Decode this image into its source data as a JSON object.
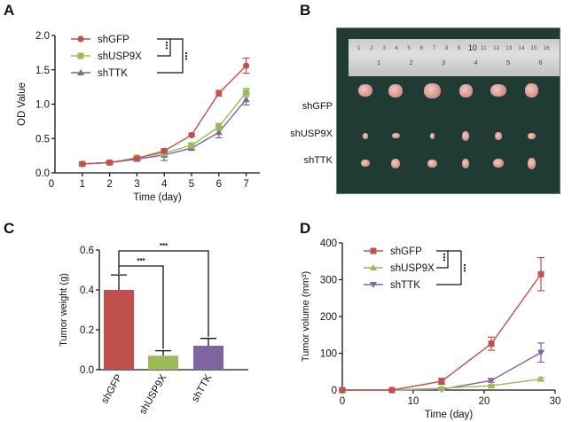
{
  "panels": {
    "A": "A",
    "B": "B",
    "C": "C",
    "D": "D"
  },
  "colors": {
    "shGFP": "#c0504d",
    "shUSP9X": "#9bbb59",
    "shTTK": "#8064a2"
  },
  "chart_data": [
    {
      "id": "A",
      "type": "line",
      "title": "",
      "xlabel": "Time (day)",
      "ylabel": "OD Value",
      "x": [
        1,
        2,
        3,
        4,
        5,
        6,
        7
      ],
      "xticks": [
        "0",
        "1",
        "2",
        "3",
        "4",
        "5",
        "6",
        "7"
      ],
      "yticks": [
        "0.0",
        "0.5",
        "1.0",
        "1.5",
        "2.0"
      ],
      "xlim": [
        0,
        7.5
      ],
      "ylim": [
        0,
        2.0
      ],
      "legend_position": "top-left",
      "series": [
        {
          "name": "shGFP",
          "marker": "circle",
          "values": [
            0.13,
            0.15,
            0.21,
            0.32,
            0.55,
            1.16,
            1.56
          ],
          "errors": [
            0.02,
            0.02,
            0.02,
            0.03,
            0.02,
            0.04,
            0.11
          ]
        },
        {
          "name": "shUSP9X",
          "marker": "square",
          "values": [
            0.13,
            0.15,
            0.22,
            0.29,
            0.4,
            0.67,
            1.17
          ],
          "errors": [
            0.02,
            0.02,
            0.02,
            0.04,
            0.03,
            0.05,
            0.06
          ]
        },
        {
          "name": "shTTK",
          "marker": "triangle",
          "values": [
            0.13,
            0.15,
            0.2,
            0.26,
            0.36,
            0.59,
            1.07
          ],
          "errors": [
            0.02,
            0.02,
            0.02,
            0.08,
            0.03,
            0.08,
            0.08
          ]
        }
      ],
      "significance": [
        "***",
        "***"
      ]
    },
    {
      "id": "C",
      "type": "bar",
      "title": "",
      "xlabel": "",
      "ylabel": "Tumor weight (g)",
      "categories": [
        "shGFP",
        "shUSP9X",
        "shTTK"
      ],
      "values": [
        0.4,
        0.07,
        0.12
      ],
      "errors": [
        0.075,
        0.025,
        0.037
      ],
      "yticks": [
        "0.0",
        "0.2",
        "0.4",
        "0.6"
      ],
      "ylim": [
        0,
        0.6
      ],
      "significance": [
        "***",
        "***"
      ]
    },
    {
      "id": "D",
      "type": "line",
      "title": "",
      "xlabel": "Time (day)",
      "ylabel": "Tumor volume  (mm³)",
      "x": [
        0,
        7,
        14,
        21,
        28
      ],
      "xticks": [
        "0",
        "10",
        "20",
        "30"
      ],
      "yticks": [
        "0",
        "100",
        "200",
        "300",
        "400"
      ],
      "xlim": [
        0,
        30
      ],
      "ylim": [
        0,
        400
      ],
      "legend_position": "top-left",
      "series": [
        {
          "name": "shGFP",
          "marker": "square",
          "values": [
            0,
            0,
            24,
            126,
            315
          ],
          "errors": [
            0,
            0,
            8,
            18,
            45
          ]
        },
        {
          "name": "shUSP9X",
          "marker": "triangle",
          "values": [
            0,
            0,
            5,
            12,
            30
          ],
          "errors": [
            0,
            0,
            2,
            3,
            4
          ]
        },
        {
          "name": "shTTK",
          "marker": "triangle-down",
          "values": [
            0,
            0,
            2,
            26,
            102
          ],
          "errors": [
            0,
            0,
            1,
            5,
            26
          ]
        }
      ],
      "significance": [
        "***",
        "***"
      ]
    }
  ],
  "photo": {
    "groups": [
      "shGFP",
      "shUSP9X",
      "shTTK"
    ],
    "ruler_top": [
      "1",
      "2",
      "3",
      "4",
      "5",
      "6",
      "7",
      "8",
      "9",
      "10",
      "11",
      "12",
      "13",
      "14",
      "15",
      "16"
    ],
    "ruler_bottom": [
      "1",
      "2",
      "3",
      "4",
      "5",
      "6"
    ]
  }
}
